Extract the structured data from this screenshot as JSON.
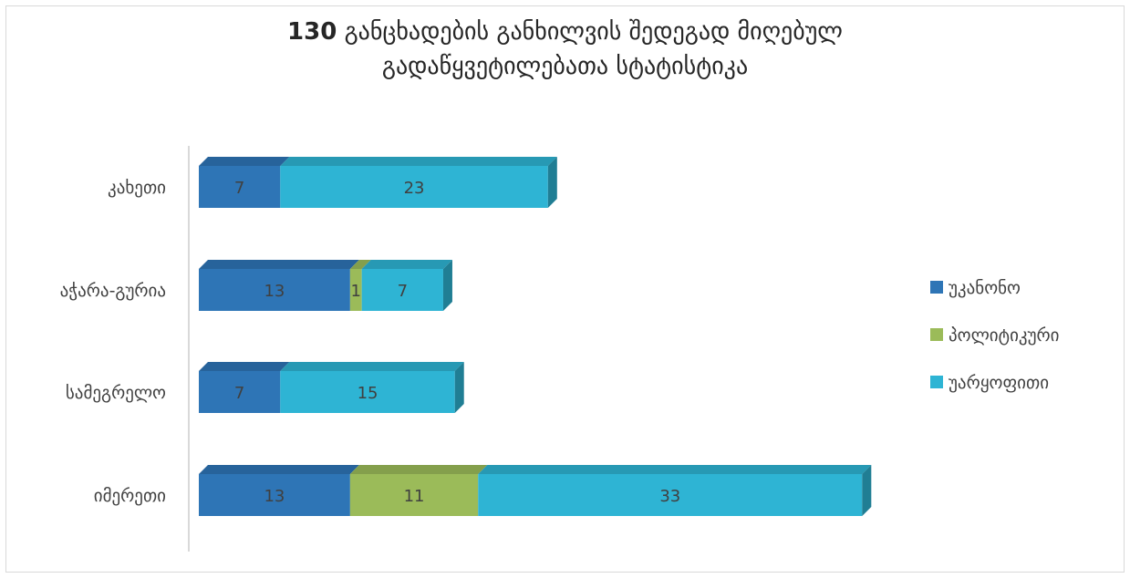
{
  "chart_data": {
    "type": "bar",
    "orientation": "horizontal",
    "stacked": true,
    "title_number": "130",
    "title_line1": "განცხადების განხილვის შედეგად მიღებულ",
    "title_line2": "გადაწყვეტილებათა სტატისტიკა",
    "categories": [
      "კახეთი",
      "აჭარა-გურია",
      "სამეგრელო",
      "იმერეთი"
    ],
    "series": [
      {
        "name": "უკანონო",
        "color": "#2e75b6",
        "values": [
          7,
          13,
          7,
          13
        ]
      },
      {
        "name": "პოლიტიკური",
        "color": "#9bbb59",
        "values": [
          0,
          1,
          0,
          11
        ]
      },
      {
        "name": "უარყოფითი",
        "color": "#2eb4d4",
        "values": [
          23,
          7,
          15,
          33
        ]
      }
    ],
    "legend_position": "right",
    "grid": false,
    "xlim": [
      0,
      57
    ]
  }
}
